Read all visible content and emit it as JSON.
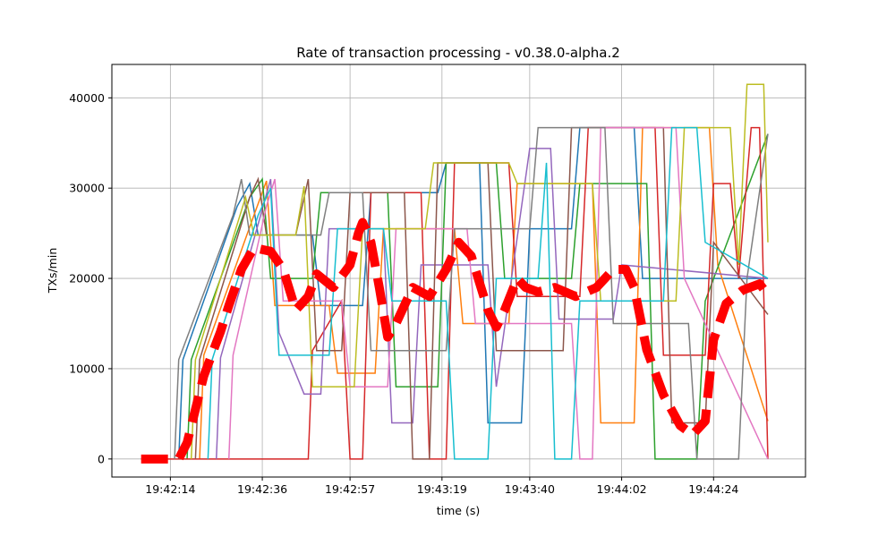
{
  "chart_data": {
    "type": "line",
    "title": "Rate of transaction processing  -  v0.38.0-alpha.2",
    "xlabel": "time (s)",
    "ylabel": "TXs/min",
    "xlim": [
      "19:42:00",
      "19:44:46"
    ],
    "ylim": [
      -2000,
      43700
    ],
    "grid": true,
    "xticks": [
      "19:42:14",
      "19:42:36",
      "19:42:57",
      "19:43:19",
      "19:43:40",
      "19:44:02",
      "19:44:24"
    ],
    "yticks": [
      0,
      10000,
      20000,
      30000,
      40000
    ],
    "series": [
      {
        "color": "#1f77b4",
        "points": [
          [
            "19:42:16",
            0
          ],
          [
            "19:42:17",
            11000
          ],
          [
            "19:42:30",
            28000
          ],
          [
            "19:42:33",
            30500
          ],
          [
            "19:42:35",
            24800
          ],
          [
            "19:42:48",
            24800
          ],
          [
            "19:42:50",
            17000
          ],
          [
            "19:43:00",
            17000
          ],
          [
            "19:43:02",
            29500
          ],
          [
            "19:43:18",
            29500
          ],
          [
            "19:43:20",
            32800
          ],
          [
            "19:43:28",
            32800
          ],
          [
            "19:43:30",
            4000
          ],
          [
            "19:43:38",
            4000
          ],
          [
            "19:43:40",
            25500
          ],
          [
            "19:43:50",
            25500
          ],
          [
            "19:43:52",
            36700
          ],
          [
            "19:44:05",
            36700
          ],
          [
            "19:44:07",
            20000
          ],
          [
            "19:44:37",
            20000
          ]
        ]
      },
      {
        "color": "#ff7f0e",
        "points": [
          [
            "19:42:21",
            0
          ],
          [
            "19:42:22",
            11500
          ],
          [
            "19:42:34",
            27000
          ],
          [
            "19:42:37",
            30800
          ],
          [
            "19:42:39",
            17000
          ],
          [
            "19:42:52",
            17000
          ],
          [
            "19:42:54",
            9500
          ],
          [
            "19:43:03",
            9500
          ],
          [
            "19:43:05",
            25500
          ],
          [
            "19:43:22",
            25500
          ],
          [
            "19:43:24",
            15000
          ],
          [
            "19:43:35",
            15000
          ],
          [
            "19:43:37",
            30500
          ],
          [
            "19:43:55",
            30500
          ],
          [
            "19:43:57",
            4000
          ],
          [
            "19:44:05",
            4000
          ],
          [
            "19:44:07",
            36700
          ],
          [
            "19:44:23",
            36700
          ],
          [
            "19:44:25",
            21500
          ],
          [
            "19:44:37",
            4200
          ]
        ]
      },
      {
        "color": "#2ca02c",
        "points": [
          [
            "19:42:18",
            0
          ],
          [
            "19:42:19",
            11000
          ],
          [
            "19:42:33",
            29000
          ],
          [
            "19:42:36",
            31000
          ],
          [
            "19:42:38",
            20000
          ],
          [
            "19:42:48",
            20000
          ],
          [
            "19:42:50",
            29500
          ],
          [
            "19:43:06",
            29500
          ],
          [
            "19:43:08",
            8000
          ],
          [
            "19:43:18",
            8000
          ],
          [
            "19:43:20",
            32800
          ],
          [
            "19:43:32",
            32800
          ],
          [
            "19:43:34",
            20000
          ],
          [
            "19:43:50",
            20000
          ],
          [
            "19:43:52",
            30500
          ],
          [
            "19:44:08",
            30500
          ],
          [
            "19:44:10",
            0
          ],
          [
            "19:44:20",
            0
          ],
          [
            "19:44:22",
            17500
          ],
          [
            "19:44:37",
            36000
          ]
        ]
      },
      {
        "color": "#d62728",
        "points": [
          [
            "19:42:07",
            0
          ],
          [
            "19:42:47",
            0
          ],
          [
            "19:42:48",
            12000
          ],
          [
            "19:42:55",
            17500
          ],
          [
            "19:42:57",
            0
          ],
          [
            "19:43:00",
            0
          ],
          [
            "19:43:02",
            29500
          ],
          [
            "19:43:14",
            29500
          ],
          [
            "19:43:16",
            0
          ],
          [
            "19:43:20",
            0
          ],
          [
            "19:43:22",
            32800
          ],
          [
            "19:43:35",
            32800
          ],
          [
            "19:43:37",
            18000
          ],
          [
            "19:43:52",
            18000
          ],
          [
            "19:43:54",
            36700
          ],
          [
            "19:44:10",
            36700
          ],
          [
            "19:44:12",
            11500
          ],
          [
            "19:44:22",
            11500
          ],
          [
            "19:44:24",
            30500
          ],
          [
            "19:44:28",
            30500
          ],
          [
            "19:44:30",
            20000
          ],
          [
            "19:44:33",
            36700
          ],
          [
            "19:44:35",
            36700
          ],
          [
            "19:44:37",
            0
          ]
        ]
      },
      {
        "color": "#9467bd",
        "points": [
          [
            "19:42:25",
            0
          ],
          [
            "19:42:26",
            11200
          ],
          [
            "19:42:35",
            26000
          ],
          [
            "19:42:38",
            31000
          ],
          [
            "19:42:40",
            14000
          ],
          [
            "19:42:46",
            7200
          ],
          [
            "19:42:50",
            7200
          ],
          [
            "19:42:52",
            25500
          ],
          [
            "19:43:05",
            25500
          ],
          [
            "19:43:07",
            4000
          ],
          [
            "19:43:12",
            4000
          ],
          [
            "19:43:14",
            21500
          ],
          [
            "19:43:30",
            21500
          ],
          [
            "19:43:32",
            8000
          ],
          [
            "19:43:40",
            34400
          ],
          [
            "19:43:45",
            34400
          ],
          [
            "19:43:47",
            15500
          ],
          [
            "19:44:00",
            15500
          ],
          [
            "19:44:02",
            21500
          ],
          [
            "19:44:37",
            20000
          ]
        ]
      },
      {
        "color": "#8c564b",
        "points": [
          [
            "19:42:20",
            0
          ],
          [
            "19:42:21",
            11000
          ],
          [
            "19:42:33",
            29000
          ],
          [
            "19:42:35",
            31000
          ],
          [
            "19:42:37",
            24800
          ],
          [
            "19:42:44",
            24800
          ],
          [
            "19:42:47",
            31000
          ],
          [
            "19:42:49",
            12000
          ],
          [
            "19:42:55",
            12000
          ],
          [
            "19:42:57",
            29500
          ],
          [
            "19:43:10",
            29500
          ],
          [
            "19:43:12",
            0
          ],
          [
            "19:43:16",
            0
          ],
          [
            "19:43:18",
            32800
          ],
          [
            "19:43:30",
            32800
          ],
          [
            "19:43:32",
            12000
          ],
          [
            "19:43:48",
            12000
          ],
          [
            "19:43:50",
            36700
          ],
          [
            "19:44:12",
            36700
          ],
          [
            "19:44:14",
            4000
          ],
          [
            "19:44:22",
            4000
          ],
          [
            "19:44:24",
            24000
          ],
          [
            "19:44:37",
            16000
          ]
        ]
      },
      {
        "color": "#e377c2",
        "points": [
          [
            "19:42:28",
            0
          ],
          [
            "19:42:29",
            11500
          ],
          [
            "19:42:37",
            28000
          ],
          [
            "19:42:39",
            31000
          ],
          [
            "19:42:41",
            17500
          ],
          [
            "19:42:55",
            17500
          ],
          [
            "19:42:57",
            8000
          ],
          [
            "19:43:06",
            8000
          ],
          [
            "19:43:08",
            25500
          ],
          [
            "19:43:25",
            25500
          ],
          [
            "19:43:27",
            15000
          ],
          [
            "19:43:50",
            15000
          ],
          [
            "19:43:52",
            0
          ],
          [
            "19:43:55",
            0
          ],
          [
            "19:43:57",
            36700
          ],
          [
            "19:44:15",
            36700
          ],
          [
            "19:44:17",
            20000
          ],
          [
            "19:44:37",
            0
          ]
        ]
      },
      {
        "color": "#7f7f7f",
        "points": [
          [
            "19:42:15",
            0
          ],
          [
            "19:42:16",
            11000
          ],
          [
            "19:42:29",
            27000
          ],
          [
            "19:42:31",
            31000
          ],
          [
            "19:42:33",
            24800
          ],
          [
            "19:42:50",
            24800
          ],
          [
            "19:42:52",
            29500
          ],
          [
            "19:43:00",
            29500
          ],
          [
            "19:43:02",
            12000
          ],
          [
            "19:43:20",
            12000
          ],
          [
            "19:43:22",
            25500
          ],
          [
            "19:43:40",
            25500
          ],
          [
            "19:43:42",
            36700
          ],
          [
            "19:43:58",
            36700
          ],
          [
            "19:44:00",
            15000
          ],
          [
            "19:44:18",
            15000
          ],
          [
            "19:44:20",
            0
          ],
          [
            "19:44:30",
            0
          ],
          [
            "19:44:32",
            20000
          ],
          [
            "19:44:37",
            36000
          ]
        ]
      },
      {
        "color": "#bcbd22",
        "points": [
          [
            "19:42:19",
            0
          ],
          [
            "19:42:20",
            11000
          ],
          [
            "19:42:32",
            29000
          ],
          [
            "19:42:34",
            24800
          ],
          [
            "19:42:44",
            24800
          ],
          [
            "19:42:46",
            30200
          ],
          [
            "19:42:48",
            8000
          ],
          [
            "19:42:58",
            8000
          ],
          [
            "19:43:00",
            25500
          ],
          [
            "19:43:15",
            25500
          ],
          [
            "19:43:17",
            32800
          ],
          [
            "19:43:35",
            32800
          ],
          [
            "19:43:37",
            30500
          ],
          [
            "19:43:55",
            30500
          ],
          [
            "19:43:57",
            17500
          ],
          [
            "19:44:15",
            17500
          ],
          [
            "19:44:17",
            36700
          ],
          [
            "19:44:28",
            36700
          ],
          [
            "19:44:30",
            21500
          ],
          [
            "19:44:32",
            41500
          ],
          [
            "19:44:36",
            41500
          ],
          [
            "19:44:37",
            24000
          ]
        ]
      },
      {
        "color": "#17becf",
        "points": [
          [
            "19:42:23",
            0
          ],
          [
            "19:42:24",
            11000
          ],
          [
            "19:42:35",
            27000
          ],
          [
            "19:42:38",
            30000
          ],
          [
            "19:42:40",
            11500
          ],
          [
            "19:42:52",
            11500
          ],
          [
            "19:42:54",
            25500
          ],
          [
            "19:43:05",
            25500
          ],
          [
            "19:43:07",
            17500
          ],
          [
            "19:43:20",
            17500
          ],
          [
            "19:43:22",
            0
          ],
          [
            "19:43:30",
            0
          ],
          [
            "19:43:32",
            20000
          ],
          [
            "19:43:42",
            20000
          ],
          [
            "19:43:44",
            32800
          ],
          [
            "19:43:46",
            0
          ],
          [
            "19:43:50",
            0
          ],
          [
            "19:43:52",
            17500
          ],
          [
            "19:44:12",
            17500
          ],
          [
            "19:44:14",
            36700
          ],
          [
            "19:44:20",
            36700
          ],
          [
            "19:44:22",
            24000
          ],
          [
            "19:44:37",
            20000
          ]
        ]
      }
    ],
    "mean_line": {
      "color": "#ff0000",
      "style": "dashed",
      "points": [
        [
          "19:42:07",
          0
        ],
        [
          "19:42:16",
          0
        ],
        [
          "19:42:18",
          1800
        ],
        [
          "19:42:22",
          9200
        ],
        [
          "19:42:26",
          14100
        ],
        [
          "19:42:28",
          17000
        ],
        [
          "19:42:31",
          21000
        ],
        [
          "19:42:34",
          23400
        ],
        [
          "19:42:38",
          23000
        ],
        [
          "19:42:41",
          21000
        ],
        [
          "19:42:44",
          16500
        ],
        [
          "19:42:47",
          18000
        ],
        [
          "19:42:49",
          20500
        ],
        [
          "19:42:53",
          19000
        ],
        [
          "19:42:57",
          21500
        ],
        [
          "19:42:59",
          25000
        ],
        [
          "19:43:00",
          26200
        ],
        [
          "19:43:02",
          24000
        ],
        [
          "19:43:04",
          19000
        ],
        [
          "19:43:06",
          13500
        ],
        [
          "19:43:08",
          15000
        ],
        [
          "19:43:12",
          19000
        ],
        [
          "19:43:16",
          18000
        ],
        [
          "19:43:20",
          21000
        ],
        [
          "19:43:23",
          24000
        ],
        [
          "19:43:26",
          22500
        ],
        [
          "19:43:30",
          16500
        ],
        [
          "19:43:32",
          14600
        ],
        [
          "19:43:34",
          16500
        ],
        [
          "19:43:37",
          20000
        ],
        [
          "19:43:39",
          19000
        ],
        [
          "19:43:42",
          18500
        ],
        [
          "19:43:46",
          19000
        ],
        [
          "19:43:51",
          18000
        ],
        [
          "19:43:56",
          19000
        ],
        [
          "19:44:00",
          21000
        ],
        [
          "19:44:03",
          21000
        ],
        [
          "19:44:05",
          19000
        ],
        [
          "19:44:08",
          12100
        ],
        [
          "19:44:12",
          7100
        ],
        [
          "19:44:16",
          3700
        ],
        [
          "19:44:19",
          2700
        ],
        [
          "19:44:22",
          4200
        ],
        [
          "19:44:24",
          13200
        ],
        [
          "19:44:27",
          17200
        ],
        [
          "19:44:31",
          18700
        ],
        [
          "19:44:35",
          19400
        ],
        [
          "19:44:37",
          18200
        ]
      ]
    }
  }
}
